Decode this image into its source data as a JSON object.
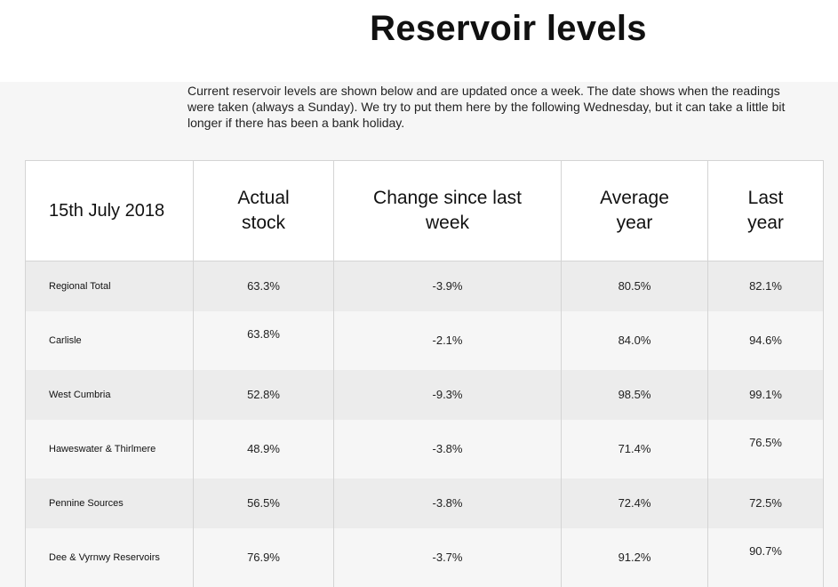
{
  "page": {
    "title": "Reservoir levels",
    "intro": "Current reservoir levels are shown below and are updated once a week. The date shows when the readings were taken (always a Sunday). We try to put them here by the following Wednesday, but it can take a little bit longer if there has been a bank holiday."
  },
  "table": {
    "headers": {
      "date": "15th July 2018",
      "actual_stock": "Actual stock",
      "change": "Change since last week",
      "average_year": "Average year",
      "last_year": "Last year"
    },
    "rows": [
      {
        "name": "Regional Total",
        "actual": "63.3%",
        "change": "-3.9%",
        "average": "80.5%",
        "last_year": "82.1%"
      },
      {
        "name": "Carlisle",
        "actual": "63.8%",
        "change": "-2.1%",
        "average": "84.0%",
        "last_year": "94.6%"
      },
      {
        "name": "West Cumbria",
        "actual": "52.8%",
        "change": "-9.3%",
        "average": "98.5%",
        "last_year": "99.1%"
      },
      {
        "name": "Haweswater & Thirlmere",
        "actual": "48.9%",
        "change": "-3.8%",
        "average": "71.4%",
        "last_year": "76.5%"
      },
      {
        "name": "Pennine Sources",
        "actual": "56.5%",
        "change": "-3.8%",
        "average": "72.4%",
        "last_year": "72.5%"
      },
      {
        "name": "Dee & Vyrnwy Reservoirs",
        "actual": "76.9%",
        "change": "-3.7%",
        "average": "91.2%",
        "last_year": "90.7%"
      }
    ]
  }
}
